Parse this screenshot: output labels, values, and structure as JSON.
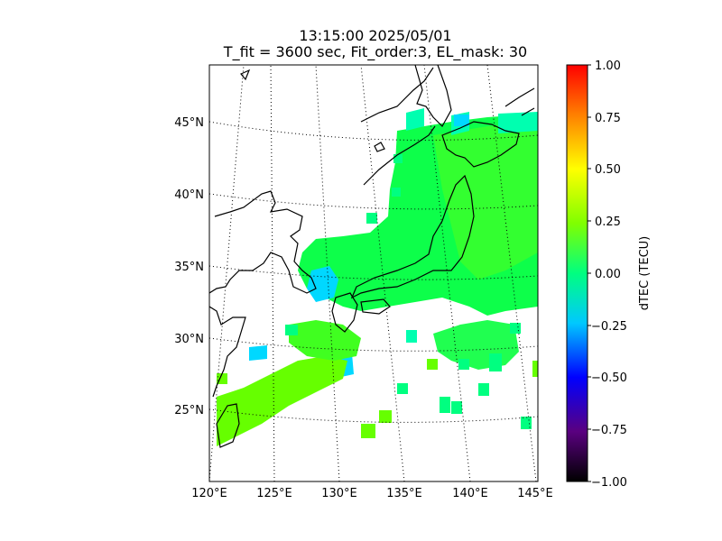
{
  "title": {
    "line1": "13:15:00 2025/05/01",
    "line2": "T_fit = 3600 sec, Fit_order:3, EL_mask: 30"
  },
  "map": {
    "lon_labels": [
      "120°E",
      "125°E",
      "130°E",
      "135°E",
      "140°E",
      "145°E"
    ],
    "lat_labels": [
      "25°N",
      "30°N",
      "35°N",
      "40°N",
      "45°N"
    ],
    "lon_range": [
      120,
      145
    ],
    "lat_range": [
      20,
      49
    ],
    "graticule": "dotted",
    "coastlines": true
  },
  "colorbar": {
    "label": "dTEC (TECU)",
    "range": [
      -1.0,
      1.0
    ],
    "tick_labels": [
      "1.00",
      "0.75",
      "0.50",
      "0.25",
      "0.00",
      "−0.25",
      "−0.50",
      "−0.75",
      "−1.00"
    ],
    "colormap": [
      "#000000",
      "#5a0080",
      "#0000ff",
      "#00c8ff",
      "#00ff80",
      "#80ff00",
      "#ffff00",
      "#ff8000",
      "#ff0000"
    ]
  },
  "colors": {
    "background": "#ffffff",
    "land_outline": "#000000",
    "dtec_near_zero": "#00ff40",
    "dtec_slightly_positive": "#66ff00",
    "dtec_slightly_negative": "#00ffb0",
    "dtec_negative": "#00c8ff"
  }
}
